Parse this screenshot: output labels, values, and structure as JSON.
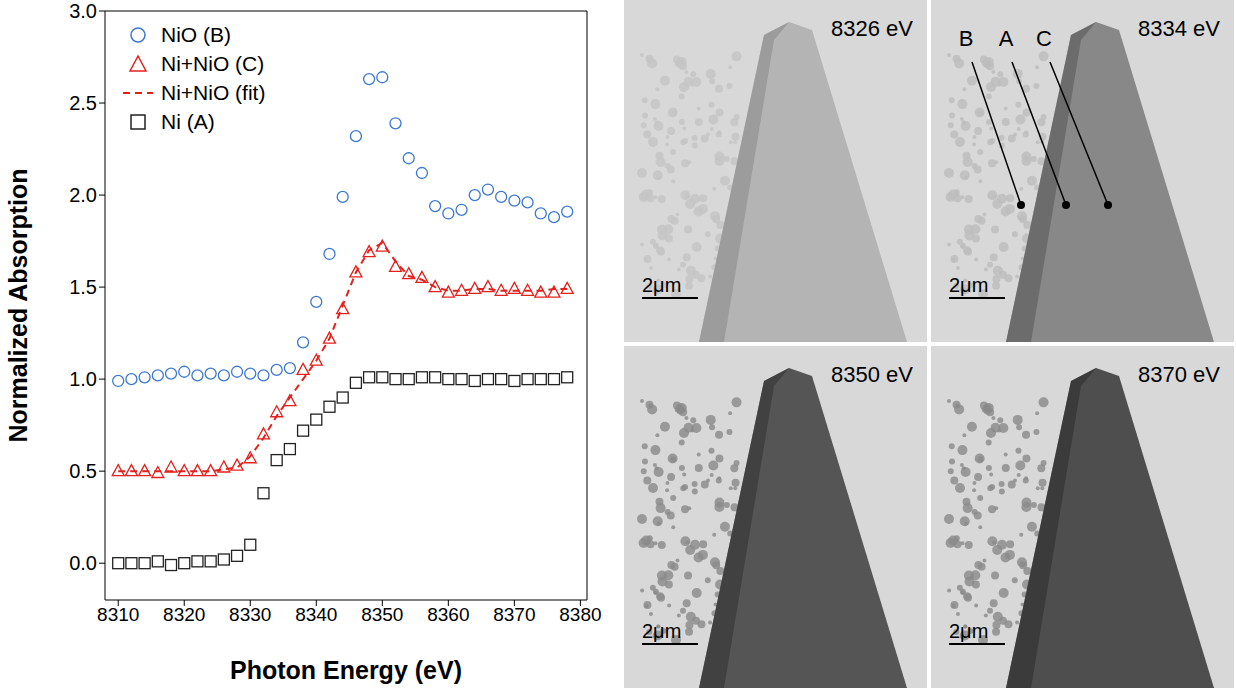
{
  "chart_data": {
    "type": "scatter",
    "x_label": "Photon Energy (eV)",
    "y_label": "Normalized Absorption",
    "x": [
      8310,
      8312,
      8314,
      8316,
      8318,
      8320,
      8322,
      8324,
      8326,
      8328,
      8330,
      8332,
      8334,
      8336,
      8338,
      8340,
      8342,
      8344,
      8346,
      8348,
      8350,
      8352,
      8354,
      8356,
      8358,
      8360,
      8362,
      8364,
      8366,
      8368,
      8370,
      8372,
      8374,
      8376,
      8378
    ],
    "series": [
      {
        "name": "NiO (B)",
        "color": "#3b78d4",
        "marker": "circle",
        "values": [
          0.99,
          1.0,
          1.01,
          1.02,
          1.03,
          1.04,
          1.02,
          1.03,
          1.02,
          1.04,
          1.03,
          1.02,
          1.05,
          1.06,
          1.2,
          1.42,
          1.68,
          1.99,
          2.32,
          2.63,
          2.64,
          2.39,
          2.2,
          2.12,
          1.94,
          1.9,
          1.92,
          2.0,
          2.03,
          1.99,
          1.97,
          1.96,
          1.9,
          1.88,
          1.91
        ]
      },
      {
        "name": "Ni+NiO (C)",
        "color": "#e3211c",
        "marker": "triangle",
        "values": [
          0.5,
          0.5,
          0.5,
          0.49,
          0.52,
          0.5,
          0.5,
          0.5,
          0.52,
          0.53,
          0.57,
          0.7,
          0.82,
          0.88,
          1.05,
          1.1,
          1.22,
          1.38,
          1.58,
          1.69,
          1.72,
          1.61,
          1.57,
          1.55,
          1.5,
          1.47,
          1.48,
          1.49,
          1.5,
          1.48,
          1.49,
          1.48,
          1.47,
          1.47,
          1.49
        ]
      },
      {
        "name": "Ni+NiO (fit)",
        "color": "#e3211c",
        "type": "line",
        "line_style": "dashed",
        "values": [
          0.5,
          0.5,
          0.5,
          0.5,
          0.5,
          0.5,
          0.5,
          0.5,
          0.51,
          0.52,
          0.58,
          0.68,
          0.8,
          0.9,
          1.0,
          1.1,
          1.22,
          1.4,
          1.58,
          1.7,
          1.74,
          1.64,
          1.56,
          1.54,
          1.5,
          1.48,
          1.48,
          1.49,
          1.49,
          1.48,
          1.48,
          1.48,
          1.48,
          1.49,
          1.49
        ]
      },
      {
        "name": "Ni (A)",
        "color": "#222222",
        "marker": "square",
        "values": [
          0,
          0,
          0,
          0.01,
          -0.01,
          0,
          0.01,
          0.01,
          0.02,
          0.04,
          0.1,
          0.38,
          0.56,
          0.62,
          0.72,
          0.78,
          0.85,
          0.9,
          0.98,
          1.01,
          1.01,
          1.0,
          1.0,
          1.01,
          1.01,
          1.0,
          1.0,
          0.99,
          1.0,
          1.0,
          0.99,
          1.0,
          1.0,
          1.0,
          1.01
        ]
      }
    ],
    "xlim": [
      8308,
      8381
    ],
    "xticks": [
      8310,
      8320,
      8330,
      8340,
      8350,
      8360,
      8370,
      8380
    ],
    "ylim": [
      -0.2,
      3.0
    ],
    "yticks": [
      {
        "value": 0,
        "label": "0.0"
      },
      0.5,
      {
        "value": 1,
        "label": "1.0"
      },
      1.5,
      {
        "value": 2,
        "label": "2.0"
      },
      2.5,
      {
        "value": 3,
        "label": "3.0"
      }
    ],
    "legend": "upper left",
    "grid": false
  },
  "image_panels": [
    {
      "energy": "8326 eV",
      "scale_bar": "2μm"
    },
    {
      "energy": "8334 eV",
      "scale_bar": "2μm",
      "markers": [
        "B",
        "A",
        "C"
      ]
    },
    {
      "energy": "8350 eV",
      "scale_bar": "2μm"
    },
    {
      "energy": "8370 eV",
      "scale_bar": "2μm"
    }
  ]
}
